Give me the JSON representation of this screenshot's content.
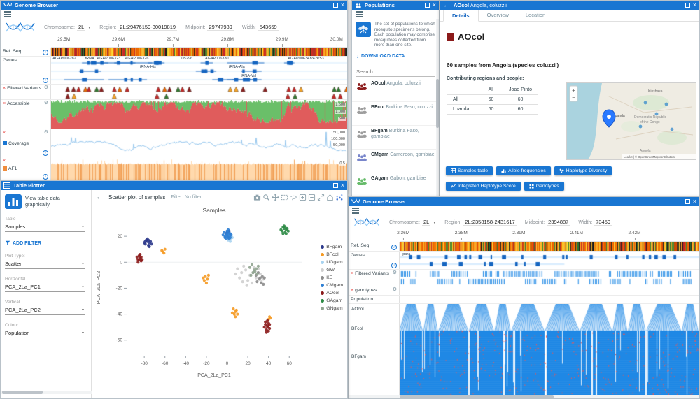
{
  "colors": {
    "titlebar": "#1976d2",
    "accent": "#1976d2",
    "heatmap_blue": "#1e88e5",
    "accessible_red": "#e05c5c",
    "accessible_green": "#6abf69",
    "coverage_blue": "#7ab8e8",
    "af1_orange": "#ffd9ad"
  },
  "gb1": {
    "title": "Genome Browser",
    "toolbar": {
      "chromosome_label": "Chromosome:",
      "chromosome": "2L",
      "region_label": "Region:",
      "region": "2L:29476159-30019819",
      "midpoint_label": "Midpoint:",
      "midpoint": "29747989",
      "width_label": "Width:",
      "width": "543659"
    },
    "ruler_ticks": [
      "29.5M",
      "29.6M",
      "29.7M",
      "29.8M",
      "29.9M",
      "30.0M"
    ],
    "tracks": {
      "refseq": "Ref. Seq.",
      "genes": "Genes",
      "variants": "Filtered Variants",
      "accessible": "Accessible",
      "coverage": "Coverage",
      "af1": "AF1"
    },
    "gene_labels": [
      "AGAP006282",
      "tRNA",
      "AGAP006323",
      "AGAP006326",
      "tRNA-His",
      "LB296",
      "AGAP006330",
      "tRNA-Ala",
      "AGAP006343",
      "P42P53",
      "tRNA-Val"
    ],
    "accessible_axis": [
      "1,500",
      "1,000",
      "500"
    ],
    "coverage_axis": [
      "150,000",
      "100,000",
      "50,000"
    ],
    "af1_axis": [
      "0.5"
    ]
  },
  "populations": {
    "title": "Populations",
    "description": "The set of populations to which mosquito specimens belong. Each population may comprise mosquitoes collected from more than one site.",
    "download": "DOWNLOAD DATA",
    "search_placeholder": "Search",
    "items": [
      {
        "code": "AOcol",
        "rest": "Angola, coluzzii",
        "color": "#8b1a1a"
      },
      {
        "code": "BFcol",
        "rest": "Burkina Faso, coluzzii",
        "color": "#9e9e9e"
      },
      {
        "code": "BFgam",
        "rest": "Burkina Faso, gambiae",
        "color": "#9e9e9e"
      },
      {
        "code": "CMgam",
        "rest": "Cameroon, gambiae",
        "color": "#7986cb"
      },
      {
        "code": "GAgam",
        "rest": "Gabon, gambiae",
        "color": "#66bb6a"
      }
    ]
  },
  "popup": {
    "title_bold": "AOcol",
    "title_rest": " Angola, coluzzii",
    "tabs": [
      "Details",
      "Overview",
      "Location"
    ],
    "active_tab": "Details",
    "heading": "AOcol",
    "heading_color": "#8b1a1a",
    "subtitle": "60 samples from Angola (species coluzzii)",
    "table_caption": "Contributing regions and people:",
    "table": {
      "columns": [
        "",
        "All",
        "Joao Pinto"
      ],
      "rows": [
        [
          "All",
          "60",
          "60"
        ],
        [
          "Luanda",
          "60",
          "60"
        ]
      ]
    },
    "map": {
      "zoom_in": "+",
      "zoom_out": "−",
      "labels": {
        "city": "Kinshasa",
        "country_line1": "Democratic Republic",
        "country_line2": "of the Congo",
        "site": "Luanda",
        "country2": "Angola"
      },
      "attribution": "Leaflet | © OpenStreetMap contributors"
    },
    "buttons": [
      "Samples table",
      "Allele frequencies",
      "Haplotype Diversity",
      "Integrated Haplotype Score",
      "Genotypes"
    ]
  },
  "plotter": {
    "title": "Table Plotter",
    "sidebar": {
      "view_label": "View table data graphically",
      "table_label": "Table",
      "table_value": "Samples",
      "add_filter": "ADD FILTER",
      "plot_type_label": "Plot Type:",
      "plot_type_value": "Scatter",
      "horizontal_label": "Horizontal",
      "horizontal_value": "PCA_2La_PC1",
      "vertical_label": "Vertical",
      "vertical_value": "PCA_2La_PC2",
      "colour_label": "Colour",
      "colour_value": "Population"
    },
    "header": {
      "title": "Scatter plot of samples",
      "filter": "Filter: No filter"
    }
  },
  "chart_data": {
    "type": "scatter",
    "title": "Samples",
    "xlabel": "PCA_2La_PC1",
    "ylabel": "PCA_2La_PC2",
    "xlim": [
      -97,
      72
    ],
    "ylim": [
      -72,
      33
    ],
    "xticks": [
      -80,
      -60,
      -40,
      -20,
      0,
      20,
      40,
      60
    ],
    "yticks": [
      -60,
      -40,
      -20,
      0,
      20
    ],
    "legend_position": "right",
    "grid": false,
    "series": [
      {
        "name": "BFgam",
        "color": "#2d3a8c",
        "points": [
          [
            -79,
            14
          ],
          [
            -77,
            16
          ],
          [
            -75,
            15
          ],
          [
            -78,
            17
          ],
          [
            -76,
            13
          ],
          [
            -74,
            16
          ],
          [
            -80,
            15
          ],
          [
            -77,
            18
          ],
          [
            -75,
            12
          ],
          [
            -73,
            14
          ],
          [
            -79,
            16
          ],
          [
            -76,
            17
          ],
          [
            -1,
            22
          ],
          [
            0,
            23
          ],
          [
            1,
            21
          ],
          [
            2,
            24
          ]
        ]
      },
      {
        "name": "BFcol",
        "color": "#f59a23",
        "points": [
          [
            -63,
            9
          ],
          [
            -61,
            7
          ],
          [
            -60,
            10
          ],
          [
            -62,
            8
          ],
          [
            -21,
            -11
          ],
          [
            -19,
            -13
          ],
          [
            -22,
            -14
          ],
          [
            -18,
            -10
          ],
          [
            -20,
            -16
          ],
          [
            -23,
            -12
          ],
          [
            6,
            -36
          ],
          [
            8,
            -38
          ],
          [
            7,
            -40
          ],
          [
            9,
            -37
          ],
          [
            5,
            -39
          ],
          [
            8,
            -42
          ],
          [
            10,
            -40
          ],
          [
            41,
            -42
          ],
          [
            40,
            -44
          ],
          [
            42,
            -43
          ]
        ]
      },
      {
        "name": "UGgam",
        "color": "#a8d3f0",
        "points": [
          [
            1,
            17
          ],
          [
            2,
            19
          ],
          [
            3,
            18
          ],
          [
            0,
            20
          ],
          [
            4,
            20
          ],
          [
            2,
            21
          ],
          [
            3,
            16
          ],
          [
            5,
            19
          ]
        ]
      },
      {
        "name": "GW",
        "color": "#cfcfcf",
        "points": [
          [
            10,
            -5
          ],
          [
            14,
            -8
          ],
          [
            18,
            -6
          ],
          [
            22,
            -10
          ],
          [
            12,
            -12
          ],
          [
            16,
            -3
          ],
          [
            20,
            -14
          ],
          [
            25,
            -8
          ],
          [
            8,
            -9
          ],
          [
            28,
            -12
          ],
          [
            32,
            -9
          ],
          [
            35,
            -13
          ],
          [
            30,
            -5
          ],
          [
            24,
            -16
          ],
          [
            19,
            -18
          ],
          [
            15,
            -15
          ],
          [
            26,
            -4
          ],
          [
            33,
            -15
          ]
        ]
      },
      {
        "name": "KE",
        "color": "#8c8c8c",
        "points": [
          [
            28,
            -10
          ],
          [
            31,
            -13
          ],
          [
            34,
            -11
          ],
          [
            29,
            -15
          ],
          [
            33,
            -16
          ],
          [
            36,
            -12
          ],
          [
            30,
            -8
          ],
          [
            35,
            -17
          ],
          [
            32,
            -12
          ]
        ]
      },
      {
        "name": "CMgam",
        "color": "#2f80d4",
        "points": [
          [
            -2,
            20
          ],
          [
            -1,
            22
          ],
          [
            0,
            21
          ],
          [
            1,
            23
          ],
          [
            2,
            22
          ],
          [
            0,
            24
          ],
          [
            1,
            19
          ],
          [
            -1,
            18
          ],
          [
            3,
            22
          ],
          [
            2,
            20
          ],
          [
            -3,
            23
          ],
          [
            0,
            20
          ],
          [
            4,
            21
          ],
          [
            -2,
            19
          ],
          [
            1,
            25
          ],
          [
            3,
            19
          ],
          [
            -4,
            21
          ],
          [
            2,
            18
          ]
        ]
      },
      {
        "name": "AOcol",
        "color": "#8b1a1a",
        "points": [
          [
            -86,
            2
          ],
          [
            -84,
            3
          ],
          [
            -85,
            5
          ],
          [
            -83,
            1
          ],
          [
            -87,
            4
          ],
          [
            -82,
            2
          ],
          [
            -84,
            6
          ],
          [
            -86,
            0
          ],
          [
            -85,
            2
          ],
          [
            -83,
            4
          ],
          [
            37,
            -48
          ],
          [
            39,
            -50
          ],
          [
            38,
            -52
          ],
          [
            40,
            -47
          ],
          [
            41,
            -51
          ],
          [
            36,
            -50
          ],
          [
            39,
            -45
          ],
          [
            38,
            -54
          ],
          [
            40,
            -53
          ],
          [
            37,
            -46
          ],
          [
            39,
            -49
          ],
          [
            41,
            -48
          ]
        ]
      },
      {
        "name": "GAgam",
        "color": "#2e8b46",
        "points": [
          [
            53,
            24
          ],
          [
            55,
            26
          ],
          [
            57,
            25
          ],
          [
            54,
            27
          ],
          [
            56,
            23
          ],
          [
            58,
            26
          ],
          [
            52,
            25
          ],
          [
            55,
            28
          ],
          [
            57,
            22
          ],
          [
            54,
            22
          ],
          [
            59,
            24
          ],
          [
            56,
            27
          ]
        ]
      },
      {
        "name": "GNgam",
        "color": "#90a490",
        "points": [
          [
            22,
            -4
          ],
          [
            26,
            -6
          ],
          [
            24,
            -2
          ],
          [
            28,
            -5
          ],
          [
            25,
            -8
          ],
          [
            30,
            -3
          ],
          [
            27,
            -7
          ],
          [
            23,
            -10
          ],
          [
            29,
            -9
          ]
        ]
      }
    ]
  },
  "gb2": {
    "title": "Genome Browser",
    "toolbar": {
      "chromosome_label": "Chromosome:",
      "chromosome": "2L",
      "region_label": "Region:",
      "region": "2L:2358158-2431617",
      "midpoint_label": "Midpoint:",
      "midpoint": "2394887",
      "width_label": "Width:",
      "width": "73459"
    },
    "ruler_ticks": [
      "2.36M",
      "2.38M",
      "2.39M",
      "2.41M",
      "2.42M"
    ],
    "tracks": {
      "refseq": "Ref. Seq.",
      "genes": "Genes",
      "variants": "Filtered Variants",
      "genotypes": "genotypes",
      "population": "Population"
    },
    "gene_labels": [
      "para"
    ],
    "population_rows": [
      "AOcol",
      "BFcol",
      "BFgam"
    ]
  }
}
